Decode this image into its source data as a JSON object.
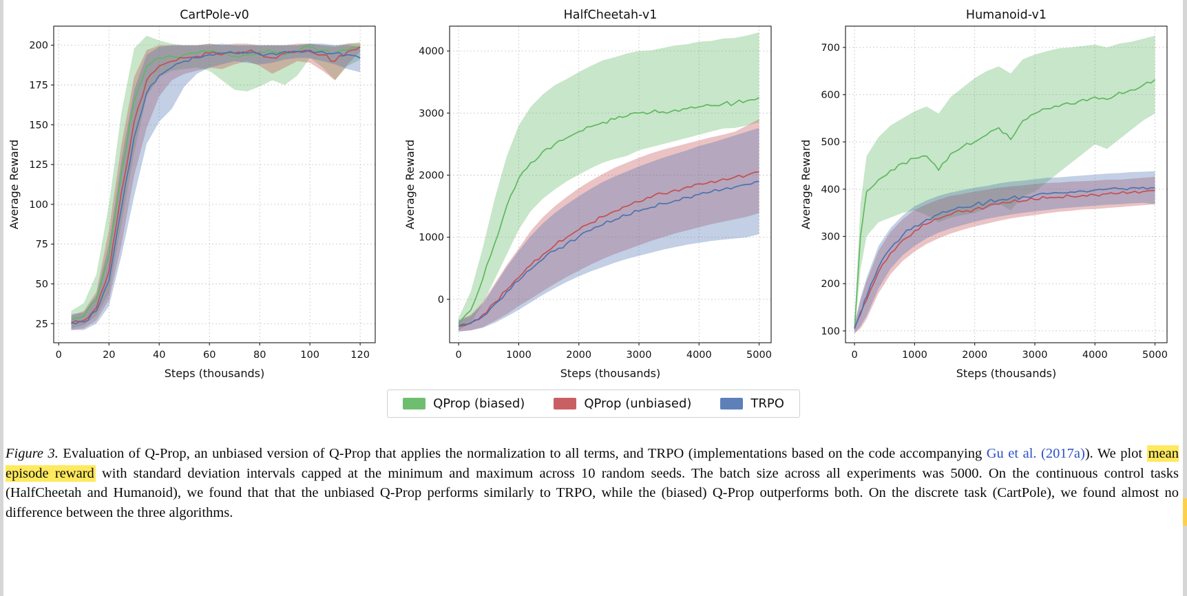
{
  "page": {
    "background": "#ffffff",
    "edge_color": "#d6d6d6",
    "marker_color": "#fdd04a"
  },
  "figure": {
    "legend": {
      "items": [
        {
          "label": "QProp (biased)",
          "color": "#5fb760"
        },
        {
          "label": "QProp (unbiased)",
          "color": "#c44e52"
        },
        {
          "label": "TRPO",
          "color": "#4c72b0"
        }
      ]
    }
  },
  "chart_data": [
    {
      "type": "line",
      "title": "CartPole-v0",
      "xlabel": "Steps (thousands)",
      "ylabel": "Average Reward",
      "xlim": [
        -2,
        126
      ],
      "ylim": [
        13,
        212
      ],
      "xticks": [
        0,
        20,
        40,
        60,
        80,
        100,
        120
      ],
      "yticks": [
        25,
        50,
        75,
        100,
        125,
        150,
        175,
        200
      ],
      "grid": true,
      "x": [
        5,
        10,
        15,
        20,
        25,
        30,
        35,
        40,
        45,
        50,
        55,
        60,
        65,
        70,
        75,
        80,
        85,
        90,
        95,
        100,
        105,
        110,
        115,
        120
      ],
      "series": [
        {
          "name": "QProp (biased)",
          "color": "#5fb760",
          "mean": [
            27,
            30,
            40,
            68,
            120,
            165,
            187,
            192,
            193,
            194,
            195,
            196,
            195,
            193,
            194,
            196,
            196,
            194,
            196,
            199,
            197,
            195,
            197,
            199
          ],
          "lo": [
            22,
            24,
            30,
            44,
            88,
            132,
            168,
            180,
            184,
            185,
            186,
            184,
            178,
            172,
            171,
            174,
            178,
            175,
            181,
            192,
            186,
            178,
            187,
            191
          ],
          "hi": [
            33,
            38,
            56,
            100,
            158,
            198,
            206,
            203,
            201,
            200,
            200,
            201,
            200,
            200,
            200,
            200,
            200,
            200,
            200,
            201,
            200,
            200,
            201,
            202
          ]
        },
        {
          "name": "QProp (unbiased)",
          "color": "#c44e52",
          "mean": [
            25,
            27,
            35,
            58,
            108,
            152,
            178,
            187,
            190,
            192,
            193,
            195,
            194,
            195,
            196,
            195,
            192,
            195,
            196,
            196,
            194,
            190,
            196,
            199
          ],
          "lo": [
            21,
            22,
            27,
            40,
            75,
            118,
            148,
            168,
            178,
            182,
            184,
            186,
            185,
            188,
            190,
            187,
            182,
            186,
            190,
            189,
            184,
            178,
            188,
            196
          ],
          "hi": [
            30,
            33,
            45,
            84,
            138,
            180,
            197,
            200,
            200,
            200,
            200,
            201,
            200,
            201,
            201,
            200,
            200,
            200,
            201,
            201,
            200,
            199,
            201,
            201
          ]
        },
        {
          "name": "TRPO",
          "color": "#4c72b0",
          "mean": [
            26,
            26,
            33,
            52,
            98,
            142,
            170,
            181,
            186,
            190,
            192,
            194,
            195,
            195,
            195,
            194,
            195,
            196,
            196,
            197,
            196,
            195,
            194,
            192
          ],
          "lo": [
            21,
            21,
            25,
            36,
            68,
            105,
            138,
            152,
            160,
            174,
            182,
            186,
            188,
            190,
            189,
            188,
            189,
            191,
            192,
            192,
            190,
            188,
            185,
            183
          ],
          "hi": [
            31,
            32,
            43,
            75,
            128,
            172,
            194,
            199,
            200,
            200,
            200,
            200,
            201,
            200,
            200,
            200,
            200,
            200,
            200,
            201,
            201,
            200,
            200,
            199
          ]
        }
      ]
    },
    {
      "type": "line",
      "title": "HalfCheetah-v1",
      "xlabel": "Steps (thousands)",
      "ylabel": "Average Reward",
      "xlim": [
        -150,
        5200
      ],
      "ylim": [
        -700,
        4400
      ],
      "xticks": [
        0,
        1000,
        2000,
        3000,
        4000,
        5000
      ],
      "yticks": [
        0,
        1000,
        2000,
        3000,
        4000
      ],
      "grid": true,
      "x": [
        0,
        200,
        400,
        600,
        800,
        1000,
        1200,
        1400,
        1600,
        1800,
        2000,
        2200,
        2400,
        2600,
        2800,
        3000,
        3200,
        3400,
        3600,
        3800,
        4000,
        4200,
        4400,
        4600,
        4800,
        5000
      ],
      "series": [
        {
          "name": "QProp (biased)",
          "color": "#5fb760",
          "mean": [
            -400,
            -180,
            320,
            900,
            1500,
            1950,
            2200,
            2380,
            2500,
            2600,
            2700,
            2780,
            2850,
            2900,
            2950,
            3000,
            3010,
            3020,
            3050,
            3070,
            3100,
            3120,
            3150,
            3160,
            3200,
            3250
          ],
          "lo": [
            -500,
            -380,
            -80,
            320,
            720,
            1120,
            1420,
            1620,
            1770,
            1900,
            2010,
            2110,
            2200,
            2260,
            2310,
            2400,
            2450,
            2500,
            2550,
            2600,
            2650,
            2700,
            2750,
            2760,
            2800,
            2850
          ],
          "hi": [
            -300,
            120,
            820,
            1620,
            2300,
            2800,
            3100,
            3300,
            3450,
            3550,
            3660,
            3760,
            3850,
            3900,
            3960,
            4000,
            4010,
            4050,
            4090,
            4110,
            4150,
            4160,
            4200,
            4210,
            4250,
            4300
          ]
        },
        {
          "name": "QProp (unbiased)",
          "color": "#c44e52",
          "mean": [
            -430,
            -380,
            -250,
            -50,
            150,
            350,
            550,
            720,
            870,
            1000,
            1120,
            1230,
            1330,
            1420,
            1500,
            1570,
            1640,
            1700,
            1760,
            1810,
            1860,
            1900,
            1940,
            1970,
            2000,
            2050
          ],
          "lo": [
            -520,
            -500,
            -450,
            -350,
            -240,
            -110,
            10,
            130,
            250,
            360,
            460,
            560,
            650,
            730,
            800,
            870,
            940,
            1000,
            1060,
            1110,
            1160,
            1210,
            1250,
            1290,
            1330,
            1390
          ],
          "hi": [
            -340,
            -250,
            -50,
            250,
            550,
            820,
            1100,
            1320,
            1500,
            1650,
            1790,
            1910,
            2020,
            2120,
            2200,
            2280,
            2350,
            2410,
            2460,
            2510,
            2560,
            2610,
            2650,
            2700,
            2800,
            2900
          ]
        },
        {
          "name": "TRPO",
          "color": "#4c72b0",
          "mean": [
            -430,
            -390,
            -280,
            -80,
            120,
            300,
            480,
            640,
            780,
            900,
            1010,
            1110,
            1200,
            1280,
            1350,
            1420,
            1480,
            1540,
            1590,
            1640,
            1690,
            1730,
            1770,
            1810,
            1850,
            1900
          ],
          "lo": [
            -520,
            -500,
            -460,
            -380,
            -280,
            -170,
            -50,
            70,
            180,
            280,
            370,
            450,
            520,
            590,
            650,
            700,
            750,
            800,
            840,
            880,
            910,
            940,
            960,
            980,
            1000,
            1050
          ],
          "hi": [
            -340,
            -270,
            -80,
            220,
            520,
            780,
            1020,
            1220,
            1390,
            1530,
            1660,
            1780,
            1890,
            1980,
            2060,
            2140,
            2210,
            2280,
            2340,
            2400,
            2470,
            2520,
            2580,
            2640,
            2700,
            2760
          ]
        }
      ]
    },
    {
      "type": "line",
      "title": "Humanoid-v1",
      "xlabel": "Steps (thousands)",
      "ylabel": "Average Reward",
      "xlim": [
        -150,
        5200
      ],
      "ylim": [
        75,
        745
      ],
      "xticks": [
        0,
        1000,
        2000,
        3000,
        4000,
        5000
      ],
      "yticks": [
        100,
        200,
        300,
        400,
        500,
        600,
        700
      ],
      "grid": true,
      "x": [
        0,
        100,
        200,
        400,
        600,
        800,
        1000,
        1200,
        1400,
        1600,
        1800,
        2000,
        2200,
        2400,
        2600,
        2800,
        3000,
        3200,
        3400,
        3600,
        3800,
        4000,
        4200,
        4400,
        4600,
        4800,
        5000
      ],
      "series": [
        {
          "name": "QProp (biased)",
          "color": "#5fb760",
          "mean": [
            105,
            300,
            395,
            420,
            440,
            455,
            465,
            470,
            440,
            475,
            490,
            500,
            515,
            530,
            505,
            545,
            560,
            570,
            575,
            580,
            590,
            595,
            590,
            605,
            610,
            620,
            632
          ],
          "lo": [
            95,
            230,
            300,
            330,
            340,
            350,
            355,
            345,
            330,
            340,
            345,
            350,
            360,
            370,
            355,
            385,
            395,
            415,
            435,
            455,
            475,
            495,
            485,
            505,
            525,
            545,
            560
          ],
          "hi": [
            115,
            370,
            470,
            510,
            535,
            550,
            565,
            575,
            560,
            595,
            615,
            635,
            650,
            660,
            645,
            675,
            685,
            692,
            698,
            700,
            703,
            706,
            700,
            708,
            712,
            718,
            725
          ]
        },
        {
          "name": "QProp (unbiased)",
          "color": "#c44e52",
          "mean": [
            105,
            135,
            165,
            225,
            265,
            292,
            312,
            326,
            337,
            346,
            352,
            358,
            363,
            368,
            372,
            375,
            378,
            381,
            383,
            385,
            387,
            388,
            390,
            391,
            393,
            395,
            397
          ],
          "lo": [
            95,
            105,
            125,
            180,
            220,
            248,
            268,
            284,
            296,
            306,
            314,
            321,
            327,
            333,
            338,
            342,
            345,
            349,
            352,
            354,
            357,
            358,
            360,
            362,
            364,
            366,
            368
          ],
          "hi": [
            115,
            165,
            205,
            270,
            310,
            336,
            356,
            368,
            378,
            386,
            390,
            395,
            399,
            403,
            406,
            408,
            411,
            413,
            414,
            416,
            417,
            418,
            420,
            420,
            422,
            424,
            426
          ]
        },
        {
          "name": "TRPO",
          "color": "#4c72b0",
          "mean": [
            105,
            140,
            172,
            235,
            275,
            302,
            322,
            336,
            347,
            355,
            361,
            367,
            372,
            377,
            381,
            384,
            387,
            390,
            392,
            394,
            396,
            398,
            400,
            401,
            403,
            404,
            403
          ],
          "lo": [
            95,
            110,
            132,
            190,
            232,
            260,
            280,
            296,
            308,
            317,
            324,
            331,
            337,
            342,
            346,
            350,
            353,
            356,
            359,
            361,
            363,
            365,
            367,
            368,
            370,
            371,
            368
          ],
          "hi": [
            115,
            170,
            212,
            280,
            318,
            344,
            364,
            376,
            386,
            393,
            398,
            403,
            407,
            412,
            416,
            418,
            421,
            424,
            425,
            427,
            429,
            431,
            433,
            434,
            436,
            437,
            438
          ]
        }
      ]
    }
  ],
  "caption": {
    "link_color": "#2d50c7",
    "highlight_color": "#ffe95e",
    "parts": [
      {
        "text": "Figure 3."
      },
      {
        "text": " Evaluation of Q-Prop, an unbiased version of Q-Prop that applies the normalization to all terms, and TRPO (implementations based on the code accompanying "
      },
      {
        "text": "Gu et al."
      },
      {
        "text": " "
      },
      {
        "text": "(2017a)"
      },
      {
        "text": "). We plot "
      },
      {
        "text": "mean episode reward"
      },
      {
        "text": " with standard deviation intervals capped at the minimum and maximum across 10 random seeds. The batch size across all experiments was 5000. On the continuous control tasks (HalfCheetah and Humanoid), we found that that the unbiased Q-Prop performs similarly to TRPO, while the (biased) Q-Prop outperforms both. On the discrete task (CartPole), we found almost no difference between the three algorithms."
      }
    ]
  }
}
